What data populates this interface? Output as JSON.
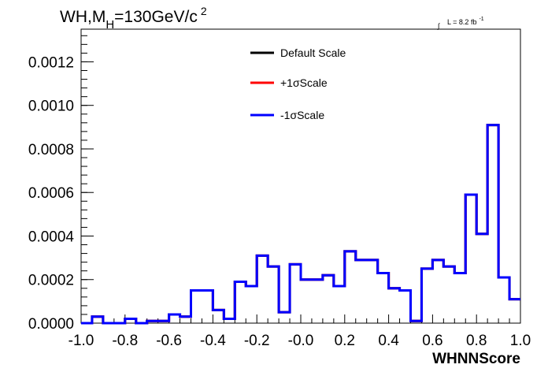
{
  "chart_data": {
    "type": "line",
    "title": {
      "main": "WH,M",
      "sub": "H",
      "value": "=130GeV/c",
      "sup": "2"
    },
    "luminosity": {
      "integral_symbol": "∫",
      "text": "L = 8.2 fb",
      "sup": "-1"
    },
    "xlabel": "WHNNScore",
    "ylabel": "",
    "xlim": [
      -1.0,
      1.0
    ],
    "ylim": [
      0,
      0.00135
    ],
    "x_ticks": [
      "-1.0",
      "-0.8",
      "-0.6",
      "-0.4",
      "-0.2",
      "-0.0",
      "0.2",
      "0.4",
      "0.6",
      "0.8",
      "1.0"
    ],
    "y_ticks": [
      "0.0000",
      "0.0002",
      "0.0004",
      "0.0006",
      "0.0008",
      "0.0010",
      "0.0012"
    ],
    "legend_position": "top-center",
    "bin_edges": [
      -1.0,
      -0.95,
      -0.9,
      -0.85,
      -0.8,
      -0.75,
      -0.7,
      -0.65,
      -0.6,
      -0.55,
      -0.5,
      -0.45,
      -0.4,
      -0.35,
      -0.3,
      -0.25,
      -0.2,
      -0.15,
      -0.1,
      -0.05,
      0.0,
      0.05,
      0.1,
      0.15,
      0.2,
      0.25,
      0.3,
      0.35,
      0.4,
      0.45,
      0.5,
      0.55,
      0.6,
      0.65,
      0.7,
      0.75,
      0.8,
      0.85,
      0.9,
      0.95,
      1.0
    ],
    "series": [
      {
        "name": "Default Scale",
        "color": "#000000",
        "values": [
          0.0,
          3e-05,
          0.0,
          0.0,
          2e-05,
          0.0,
          1e-05,
          1e-05,
          4e-05,
          3e-05,
          0.00015,
          0.00015,
          6e-05,
          2e-05,
          0.00019,
          0.00017,
          0.00031,
          0.00026,
          5e-05,
          0.00027,
          0.0002,
          0.0002,
          0.00022,
          0.00017,
          0.00033,
          0.00029,
          0.00029,
          0.00023,
          0.00016,
          0.00015,
          1e-05,
          0.00025,
          0.00029,
          0.00026,
          0.00023,
          0.00059,
          0.00041,
          0.00091,
          0.00021,
          0.00011
        ]
      },
      {
        "name": "+1σScale",
        "color": "#ff0000",
        "values": [
          0.0,
          3e-05,
          0.0,
          0.0,
          2e-05,
          0.0,
          1e-05,
          1e-05,
          4e-05,
          3e-05,
          0.00015,
          0.00015,
          6e-05,
          2e-05,
          0.00019,
          0.00017,
          0.00031,
          0.00026,
          5e-05,
          0.00027,
          0.0002,
          0.0002,
          0.00022,
          0.00017,
          0.00033,
          0.00029,
          0.00029,
          0.00023,
          0.00016,
          0.00015,
          1e-05,
          0.00025,
          0.00029,
          0.00026,
          0.00023,
          0.00059,
          0.00041,
          0.00091,
          0.00021,
          0.00011
        ]
      },
      {
        "name": "-1σScale",
        "color": "#0000ff",
        "values": [
          0.0,
          3e-05,
          0.0,
          0.0,
          2e-05,
          0.0,
          1e-05,
          1e-05,
          4e-05,
          3e-05,
          0.00015,
          0.00015,
          6e-05,
          2e-05,
          0.00019,
          0.00017,
          0.00031,
          0.00026,
          5e-05,
          0.00027,
          0.0002,
          0.0002,
          0.00022,
          0.00017,
          0.00033,
          0.00029,
          0.00029,
          0.00023,
          0.00016,
          0.00015,
          1e-05,
          0.00025,
          0.00029,
          0.00026,
          0.00023,
          0.00059,
          0.00041,
          0.00091,
          0.00021,
          0.00011
        ]
      }
    ]
  }
}
